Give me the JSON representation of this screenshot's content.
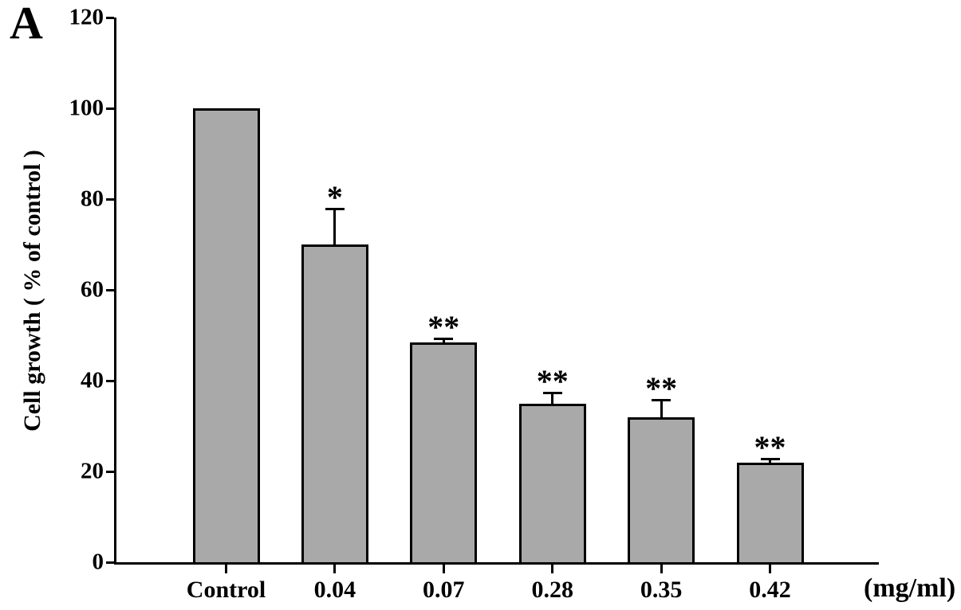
{
  "panel_label": "A",
  "chart_data": {
    "type": "bar",
    "title": "",
    "ylabel": "Cell growth ( % of control )",
    "xlabel": "(mg/ml)",
    "ylim": [
      0,
      120
    ],
    "yticks": [
      0,
      20,
      40,
      60,
      80,
      100,
      120
    ],
    "categories": [
      "Control",
      "0.04",
      "0.07",
      "0.28",
      "0.35",
      "0.42"
    ],
    "values": [
      100,
      70,
      48.5,
      35,
      32,
      22
    ],
    "errors": [
      0,
      8,
      1,
      2.5,
      4,
      1
    ],
    "significance": [
      "",
      "*",
      "**",
      "**",
      "**",
      "**"
    ],
    "bar_color": "#a9a9a9",
    "bar_edge_color": "#000000",
    "grid": false,
    "legend": "none"
  }
}
